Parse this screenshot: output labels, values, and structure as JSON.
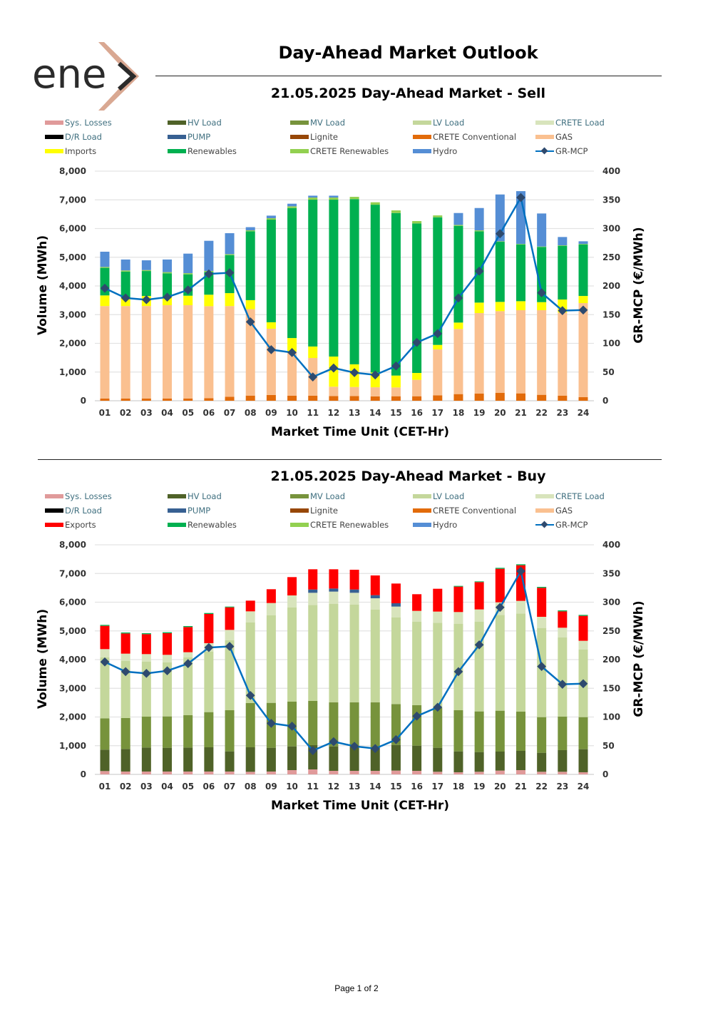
{
  "logo_text": "enex",
  "title": "Day-Ahead Market Outlook",
  "footer": "Page 1 of 2",
  "legend_sell": [
    {
      "label": "Sys. Losses",
      "color": "#e09a9a",
      "style": "teal"
    },
    {
      "label": "HV Load",
      "color": "#4f6228",
      "style": "teal"
    },
    {
      "label": "MV Load",
      "color": "#77933c",
      "style": "teal"
    },
    {
      "label": "LV Load",
      "color": "#c4d79b",
      "style": "teal"
    },
    {
      "label": "CRETE Load",
      "color": "#d8e4bc",
      "style": "teal"
    },
    {
      "label": "D/R Load",
      "color": "#000000",
      "style": "teal"
    },
    {
      "label": "PUMP",
      "color": "#376092",
      "style": "teal"
    },
    {
      "label": "Lignite",
      "color": "#974706",
      "style": "gray"
    },
    {
      "label": "CRETE Conventional",
      "color": "#e26b0a",
      "style": "gray"
    },
    {
      "label": "GAS",
      "color": "#fac090",
      "style": "gray"
    },
    {
      "label": "Imports",
      "color": "#ffff00",
      "style": "gray"
    },
    {
      "label": "Renewables",
      "color": "#00b050",
      "style": "gray"
    },
    {
      "label": "CRETE Renewables",
      "color": "#92d050",
      "style": "gray"
    },
    {
      "label": "Hydro",
      "color": "#558ed5",
      "style": "gray"
    },
    {
      "label": "GR-MCP",
      "color": "#0070c0",
      "style": "gray",
      "line": true
    }
  ],
  "legend_buy": [
    {
      "label": "Sys. Losses",
      "color": "#e09a9a",
      "style": "teal"
    },
    {
      "label": "HV Load",
      "color": "#4f6228",
      "style": "teal"
    },
    {
      "label": "MV Load",
      "color": "#77933c",
      "style": "teal"
    },
    {
      "label": "LV Load",
      "color": "#c4d79b",
      "style": "teal"
    },
    {
      "label": "CRETE Load",
      "color": "#d8e4bc",
      "style": "teal"
    },
    {
      "label": "D/R Load",
      "color": "#000000",
      "style": "teal"
    },
    {
      "label": "PUMP",
      "color": "#376092",
      "style": "teal"
    },
    {
      "label": "Lignite",
      "color": "#974706",
      "style": "gray"
    },
    {
      "label": "CRETE Conventional",
      "color": "#e26b0a",
      "style": "gray"
    },
    {
      "label": "GAS",
      "color": "#fac090",
      "style": "gray"
    },
    {
      "label": "Exports",
      "color": "#ff0000",
      "style": "gray"
    },
    {
      "label": "Renewables",
      "color": "#00b050",
      "style": "gray"
    },
    {
      "label": "CRETE Renewables",
      "color": "#92d050",
      "style": "gray"
    },
    {
      "label": "Hydro",
      "color": "#558ed5",
      "style": "gray"
    },
    {
      "label": "GR-MCP",
      "color": "#0070c0",
      "style": "gray",
      "line": true
    }
  ],
  "chart_data": [
    {
      "type": "bar",
      "stacked": true,
      "title": "21.05.2025  Day-Ahead Market - Sell",
      "xlabel": "Market Time Unit (CET-Hr)",
      "ylabel": "Volume (MWh)",
      "y2label": "GR-MCP (€/MWh)",
      "ylim": [
        0,
        8000
      ],
      "y2lim": [
        0,
        400
      ],
      "yticks": [
        "0",
        "1,000",
        "2,000",
        "3,000",
        "4,000",
        "5,000",
        "6,000",
        "7,000",
        "8,000"
      ],
      "y2ticks": [
        "0",
        "50",
        "100",
        "150",
        "200",
        "250",
        "300",
        "350",
        "400"
      ],
      "grid": true,
      "categories": [
        "01",
        "02",
        "03",
        "04",
        "05",
        "06",
        "07",
        "08",
        "09",
        "10",
        "11",
        "12",
        "13",
        "14",
        "15",
        "16",
        "17",
        "18",
        "19",
        "20",
        "21",
        "22",
        "23",
        "24"
      ],
      "series": [
        {
          "name": "CRETE Conventional",
          "color": "#e26b0a",
          "values": [
            80,
            80,
            80,
            80,
            80,
            90,
            140,
            180,
            200,
            175,
            175,
            165,
            165,
            150,
            157,
            157,
            190,
            232,
            248,
            273,
            257,
            207,
            174,
            124
          ]
        },
        {
          "name": "GAS",
          "color": "#fac090",
          "values": [
            3220,
            3220,
            3220,
            3250,
            3250,
            3205,
            3160,
            3010,
            2310,
            1530,
            1315,
            325,
            315,
            320,
            307,
            572,
            1598,
            2268,
            2807,
            2849,
            2898,
            2948,
            2898,
            3279
          ]
        },
        {
          "name": "Imports",
          "color": "#ffff00",
          "values": [
            370,
            290,
            350,
            280,
            330,
            400,
            450,
            315,
            225,
            480,
            400,
            1050,
            790,
            515,
            414,
            240,
            158,
            224,
            365,
            323,
            314,
            281,
            455,
            248
          ]
        },
        {
          "name": "Renewables",
          "color": "#00b050",
          "values": [
            960,
            910,
            870,
            830,
            745,
            795,
            1325,
            2400,
            3575,
            4530,
            5115,
            5465,
            5755,
            5845,
            5663,
            5208,
            4446,
            3370,
            2484,
            2094,
            1979,
            1921,
            1872,
            1797
          ]
        },
        {
          "name": "CRETE Renewables",
          "color": "#92d050",
          "values": [
            33,
            41,
            33,
            41,
            41,
            33,
            33,
            33,
            50,
            60,
            75,
            75,
            80,
            85,
            91,
            83,
            66,
            33,
            33,
            17,
            17,
            17,
            17,
            17
          ]
        },
        {
          "name": "Hydro",
          "color": "#558ed5",
          "values": [
            530,
            380,
            340,
            440,
            680,
            1050,
            730,
            110,
            90,
            90,
            65,
            65,
            0,
            0,
            0,
            0,
            0,
            414,
            778,
            1631,
            1838,
            1151,
            289,
            91
          ]
        }
      ],
      "line": {
        "name": "GR-MCP",
        "color": "#0070c0",
        "marker": "#2e4a6e",
        "values": [
          196,
          179,
          176,
          180.5,
          193,
          221,
          223,
          137.5,
          89,
          84,
          41.4,
          57,
          49,
          45,
          60.5,
          101.5,
          117,
          179,
          225.7,
          291,
          354,
          188,
          157,
          158
        ]
      }
    },
    {
      "type": "bar",
      "stacked": true,
      "title": "21.05.2025  Day-Ahead Market - Buy",
      "xlabel": "Market Time Unit (CET-Hr)",
      "ylabel": "Volume (MWh)",
      "y2label": "GR-MCP (€/MWh)",
      "ylim": [
        0,
        8000
      ],
      "y2lim": [
        0,
        400
      ],
      "yticks": [
        "0",
        "1,000",
        "2,000",
        "3,000",
        "4,000",
        "5,000",
        "6,000",
        "7,000",
        "8,000"
      ],
      "y2ticks": [
        "0",
        "50",
        "100",
        "150",
        "200",
        "250",
        "300",
        "350",
        "400"
      ],
      "grid": true,
      "categories": [
        "01",
        "02",
        "03",
        "04",
        "05",
        "06",
        "07",
        "08",
        "09",
        "10",
        "11",
        "12",
        "13",
        "14",
        "15",
        "16",
        "17",
        "18",
        "19",
        "20",
        "21",
        "22",
        "23",
        "24"
      ],
      "series": [
        {
          "name": "Sys. Losses",
          "color": "#e09a9a",
          "values": [
            116,
            100,
            100,
            100,
            100,
            100,
            100,
            90,
            100,
            149,
            174,
            124,
            124,
            124,
            133,
            124,
            91,
            75,
            91,
            133,
            149,
            91,
            91,
            75
          ]
        },
        {
          "name": "HV Load",
          "color": "#4f6228",
          "values": [
            745,
            786,
            836,
            828,
            836,
            844,
            703,
            854,
            828,
            828,
            845,
            853,
            837,
            812,
            894,
            878,
            837,
            728,
            688,
            662,
            671,
            663,
            754,
            803
          ]
        },
        {
          "name": "MV Load",
          "color": "#77933c",
          "values": [
            1094,
            1077,
            1076,
            1093,
            1126,
            1226,
            1433,
            1541,
            1565,
            1557,
            1540,
            1532,
            1548,
            1573,
            1424,
            1408,
            1399,
            1433,
            1416,
            1425,
            1366,
            1242,
            1167,
            1118
          ]
        },
        {
          "name": "LV Load",
          "color": "#c4d79b",
          "values": [
            2128,
            1996,
            1922,
            1880,
            2021,
            2112,
            2443,
            2807,
            3056,
            3280,
            3346,
            3437,
            3404,
            3230,
            3023,
            2915,
            2957,
            3015,
            3130,
            3337,
            3421,
            3106,
            2758,
            2360
          ]
        },
        {
          "name": "CRETE Load",
          "color": "#d8e4bc",
          "values": [
            282,
            248,
            257,
            265,
            174,
            290,
            356,
            389,
            422,
            422,
            422,
            423,
            414,
            398,
            373,
            373,
            389,
            406,
            423,
            439,
            439,
            389,
            340,
            299
          ]
        },
        {
          "name": "PUMP",
          "color": "#376092",
          "values": [
            0,
            0,
            0,
            0,
            0,
            0,
            0,
            0,
            0,
            0,
            116,
            107,
            116,
            108,
            116,
            0,
            0,
            0,
            0,
            0,
            0,
            0,
            0,
            0
          ]
        },
        {
          "name": "Exports",
          "color": "#ff0000",
          "values": [
            811,
            704,
            695,
            754,
            878,
            1018,
            787,
            373,
            481,
            638,
            704,
            671,
            688,
            687,
            687,
            580,
            795,
            886,
            952,
            1168,
            1242,
            1010,
            571,
            869
          ]
        },
        {
          "name": "Renewables",
          "color": "#00b050",
          "values": [
            33,
            33,
            33,
            33,
            33,
            33,
            25,
            0,
            0,
            0,
            0,
            0,
            0,
            0,
            0,
            0,
            0,
            25,
            25,
            33,
            33,
            33,
            33,
            33
          ]
        }
      ],
      "line": {
        "name": "GR-MCP",
        "color": "#0070c0",
        "marker": "#2e4a6e",
        "values": [
          196,
          179,
          176,
          180.5,
          193,
          221,
          223,
          137.5,
          89,
          84,
          41.4,
          57,
          49,
          45,
          60.5,
          101.5,
          117,
          179,
          225.7,
          291,
          354,
          188,
          157,
          158
        ]
      }
    }
  ]
}
